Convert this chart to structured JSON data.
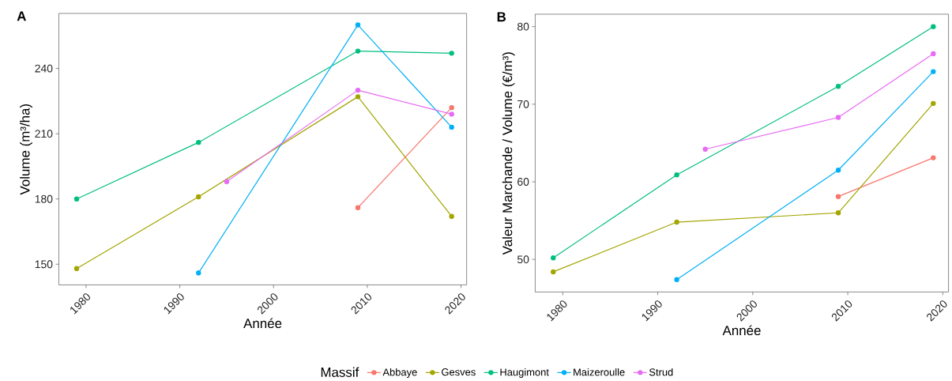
{
  "chart_data": [
    {
      "type": "line",
      "title": "A",
      "xlabel": "Année",
      "ylabel": "Volume (m³/ha)",
      "legend_title": "Massif",
      "legend": "bottom",
      "marker": "circle",
      "line_style": "solid",
      "grid": false,
      "xlim": [
        1977.1,
        2020.6
      ],
      "xticks": [
        1980,
        1990,
        2000,
        2010,
        2020
      ],
      "ylim": [
        140.5,
        265.3
      ],
      "yticks": [
        150,
        180,
        210,
        240
      ],
      "series": [
        {
          "name": "Abbaye",
          "color": "#f8766d",
          "x": [
            2009,
            2019
          ],
          "values": [
            176,
            222
          ]
        },
        {
          "name": "Gesves",
          "color": "#a3a500",
          "x": [
            1979,
            1992,
            2009,
            2019
          ],
          "values": [
            148,
            181,
            227,
            172
          ]
        },
        {
          "name": "Haugimont",
          "color": "#00bf7d",
          "x": [
            1979,
            1992,
            2009,
            2019
          ],
          "values": [
            180,
            206,
            248,
            247
          ]
        },
        {
          "name": "Maizeroulle",
          "color": "#00b0f6",
          "x": [
            1992,
            2009,
            2019
          ],
          "values": [
            146,
            260,
            213
          ]
        },
        {
          "name": "Strud",
          "color": "#e76bf3",
          "x": [
            1995,
            2009,
            2019
          ],
          "values": [
            188,
            230,
            219
          ]
        }
      ]
    },
    {
      "type": "line",
      "title": "B",
      "xlabel": "Année",
      "ylabel": "Valeur Marchande / Volume (€/m³)",
      "marker": "circle",
      "line_style": "solid",
      "grid": false,
      "xlim": [
        1977.1,
        2020.6
      ],
      "xticks": [
        1980,
        1990,
        2000,
        2010,
        2020
      ],
      "ylim": [
        45.8,
        81.6
      ],
      "yticks": [
        50,
        60,
        70,
        80
      ],
      "series": [
        {
          "color": "#f8766d",
          "x": [
            2009,
            2019
          ],
          "values": [
            58.1,
            63.1
          ]
        },
        {
          "color": "#a3a500",
          "x": [
            1979,
            1992,
            2009,
            2019
          ],
          "values": [
            48.4,
            54.8,
            56.0,
            70.1
          ]
        },
        {
          "color": "#00bf7d",
          "x": [
            1979,
            1992,
            2009,
            2019
          ],
          "values": [
            50.2,
            60.9,
            72.3,
            80.0
          ]
        },
        {
          "color": "#00b0f6",
          "x": [
            1992,
            2009,
            2019
          ],
          "values": [
            47.4,
            61.5,
            74.2
          ]
        },
        {
          "color": "#e76bf3",
          "x": [
            1995,
            2009,
            2019
          ],
          "values": [
            64.2,
            68.3,
            76.5
          ]
        }
      ]
    }
  ]
}
